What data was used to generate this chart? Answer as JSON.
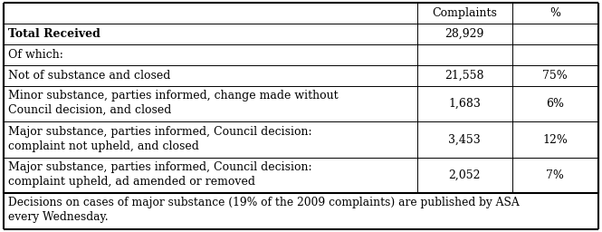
{
  "col_headers": [
    "",
    "Complaints",
    "%"
  ],
  "rows": [
    {
      "label": "Total Received",
      "complaints": "28,929",
      "pct": "",
      "bold": true,
      "lines": 1
    },
    {
      "label": "Of which:",
      "complaints": "",
      "pct": "",
      "bold": false,
      "lines": 1
    },
    {
      "label": "Not of substance and closed",
      "complaints": "21,558",
      "pct": "75%",
      "bold": false,
      "lines": 1
    },
    {
      "label": "Minor substance, parties informed, change made without\nCouncil decision, and closed",
      "complaints": "1,683",
      "pct": "6%",
      "bold": false,
      "lines": 2
    },
    {
      "label": "Major substance, parties informed, Council decision:\ncomplaint not upheld, and closed",
      "complaints": "3,453",
      "pct": "12%",
      "bold": false,
      "lines": 2
    },
    {
      "label": "Major substance, parties informed, Council decision:\ncomplaint upheld, ad amended or removed",
      "complaints": "2,052",
      "pct": "7%",
      "bold": false,
      "lines": 2
    }
  ],
  "footer_line1": "Decisions on cases of major substance (19% of the 2009 complaints) are published by ASA",
  "footer_line2": "every Wednesday.",
  "bg_color": "#ffffff",
  "font_size": 9.0,
  "footer_font_size": 8.8,
  "col_split1": 0.695,
  "col_split2": 0.855
}
